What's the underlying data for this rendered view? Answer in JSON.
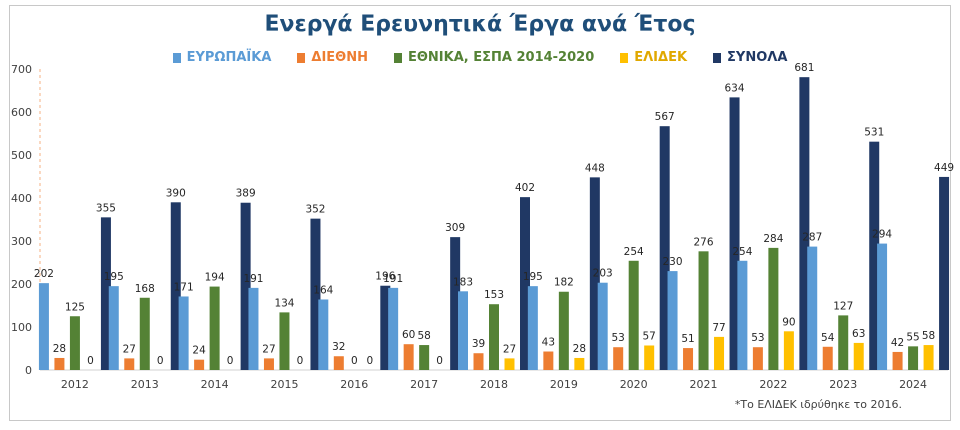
{
  "chart_data": {
    "type": "bar",
    "title": "Ενεργά Ερευνητικά Έργα ανά Έτος",
    "categories": [
      "2012",
      "2013",
      "2014",
      "2015",
      "2016",
      "2017",
      "2018",
      "2019",
      "2020",
      "2021",
      "2022",
      "2023",
      "2024"
    ],
    "ylim": [
      0,
      700
    ],
    "yticks": [
      0,
      100,
      200,
      300,
      400,
      500,
      600,
      700
    ],
    "grid": false,
    "legend_position": "top",
    "series": [
      {
        "name": "ΕΥΡΩΠΑΪΚΑ",
        "color": "#5b9bd5",
        "values": [
          202,
          195,
          171,
          191,
          164,
          191,
          183,
          195,
          203,
          230,
          254,
          287,
          294
        ]
      },
      {
        "name": "ΔΙΕΘΝΗ",
        "color": "#ed7d31",
        "values": [
          28,
          27,
          24,
          27,
          32,
          60,
          39,
          43,
          53,
          51,
          53,
          54,
          42
        ]
      },
      {
        "name": "ΕΘΝΙΚΑ, ΕΣΠΑ 2014-2020",
        "color": "#548235",
        "values": [
          125,
          168,
          194,
          134,
          0,
          58,
          153,
          182,
          254,
          276,
          284,
          127,
          55
        ]
      },
      {
        "name": "ΕΛΙΔΕΚ",
        "color": "#ffc000",
        "values": [
          0,
          0,
          0,
          0,
          0,
          0,
          27,
          28,
          57,
          77,
          90,
          63,
          58
        ]
      },
      {
        "name": "ΣΥΝΟΛΑ",
        "color": "#203864",
        "values": [
          355,
          390,
          389,
          352,
          196,
          309,
          402,
          448,
          567,
          634,
          681,
          531,
          449
        ]
      }
    ]
  },
  "footnote": "*Το ΕΛΙΔΕΚ ιδρύθηκε το 2016."
}
